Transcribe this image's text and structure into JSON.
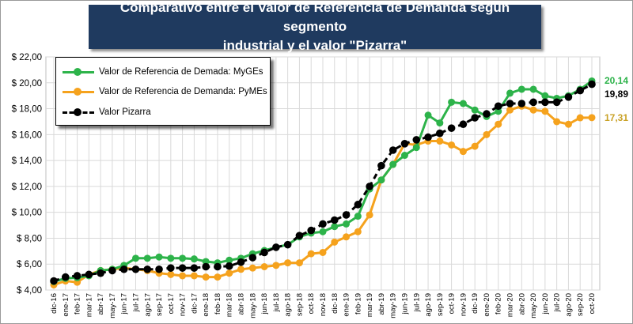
{
  "title": {
    "line1": "Comparativo entre el Valor de Referencia de Demanda según segmento",
    "line2": "industrial y el valor \"Pizarra\""
  },
  "legend": {
    "mygess": "Valor de Referencia de Demada: MyGEs",
    "pymes": "Valor de Referencia de Demanda: PyMEs",
    "pizarra": "Valor Pizarra"
  },
  "end_labels": {
    "mygess": "20,14",
    "pizarra": "19,89",
    "pymes": "17,31"
  },
  "colors": {
    "mygess": "#2db34a",
    "pymes": "#f5a21d",
    "pizarra": "#000000",
    "title_bg": "#1f3a5f"
  },
  "chart_data": {
    "type": "line",
    "title": "Comparativo entre el Valor de Referencia de Demanda según segmento industrial y el valor \"Pizarra\"",
    "xlabel": "",
    "ylabel": "",
    "ylim": [
      4,
      22
    ],
    "yticks": [
      "$ 4,00",
      "$ 6,00",
      "$ 8,00",
      "$ 10,00",
      "$ 12,00",
      "$ 14,00",
      "$ 16,00",
      "$ 18,00",
      "$ 20,00",
      "$ 22,00"
    ],
    "grid": true,
    "legend_position": "top-left",
    "categories": [
      "dic-16",
      "ene-17",
      "feb-17",
      "mar-17",
      "abr-17",
      "may-17",
      "jun-17",
      "jul-17",
      "ago-17",
      "sep-17",
      "oct-17",
      "nov-17",
      "dic-17",
      "ene-18",
      "feb-18",
      "mar-18",
      "abr-18",
      "may-18",
      "jun-18",
      "jul-18",
      "ago-18",
      "sep-18",
      "oct-18",
      "nov-18",
      "dic-18",
      "ene-19",
      "feb-19",
      "mar-19",
      "abr-19",
      "may-19",
      "jun-19",
      "jul-19",
      "ago-19",
      "sep-19",
      "oct-19",
      "nov-19",
      "dic-19",
      "ene-20",
      "feb-20",
      "mar-20",
      "abr-20",
      "may-20",
      "jun-20",
      "jul-20",
      "ago-20",
      "sep-20",
      "oct-20"
    ],
    "series": [
      {
        "name": "Valor de Referencia de Demada: MyGEs",
        "values": [
          4.65,
          4.9,
          4.95,
          5.1,
          5.5,
          5.6,
          5.9,
          6.45,
          6.45,
          6.55,
          6.45,
          6.45,
          6.4,
          6.2,
          6.1,
          6.3,
          6.45,
          6.8,
          7.05,
          7.3,
          7.5,
          8.1,
          8.4,
          8.5,
          8.9,
          9.1,
          9.7,
          11.8,
          12.5,
          13.7,
          14.4,
          15.0,
          17.5,
          16.9,
          18.5,
          18.4,
          17.9,
          17.4,
          17.8,
          19.2,
          19.5,
          19.5,
          19.0,
          18.8,
          19.0,
          19.5,
          20.14
        ]
      },
      {
        "name": "Valor de Referencia de Demanda: PyMEs",
        "values": [
          4.4,
          4.7,
          4.6,
          5.2,
          5.5,
          5.6,
          5.7,
          5.6,
          5.5,
          5.3,
          5.2,
          5.1,
          5.1,
          5.0,
          5.0,
          5.3,
          5.6,
          5.7,
          5.8,
          5.9,
          6.1,
          6.1,
          6.8,
          6.9,
          7.7,
          8.1,
          8.5,
          9.8,
          12.5,
          13.7,
          15.3,
          15.2,
          15.5,
          15.5,
          15.2,
          14.7,
          15.1,
          16.0,
          16.8,
          17.9,
          18.2,
          17.9,
          17.8,
          17.0,
          16.8,
          17.3,
          17.31
        ]
      },
      {
        "name": "Valor Pizarra",
        "values": [
          4.7,
          5.0,
          5.1,
          5.2,
          5.3,
          5.5,
          5.6,
          5.6,
          5.6,
          5.6,
          5.7,
          5.7,
          5.7,
          5.8,
          5.8,
          5.85,
          6.15,
          6.5,
          6.9,
          7.3,
          7.5,
          8.2,
          8.6,
          9.1,
          9.4,
          9.8,
          10.6,
          12.0,
          13.6,
          14.8,
          15.3,
          15.6,
          15.8,
          16.1,
          16.5,
          16.8,
          17.3,
          17.6,
          18.2,
          18.4,
          18.4,
          18.5,
          18.5,
          18.5,
          18.9,
          19.4,
          19.89
        ]
      }
    ]
  }
}
